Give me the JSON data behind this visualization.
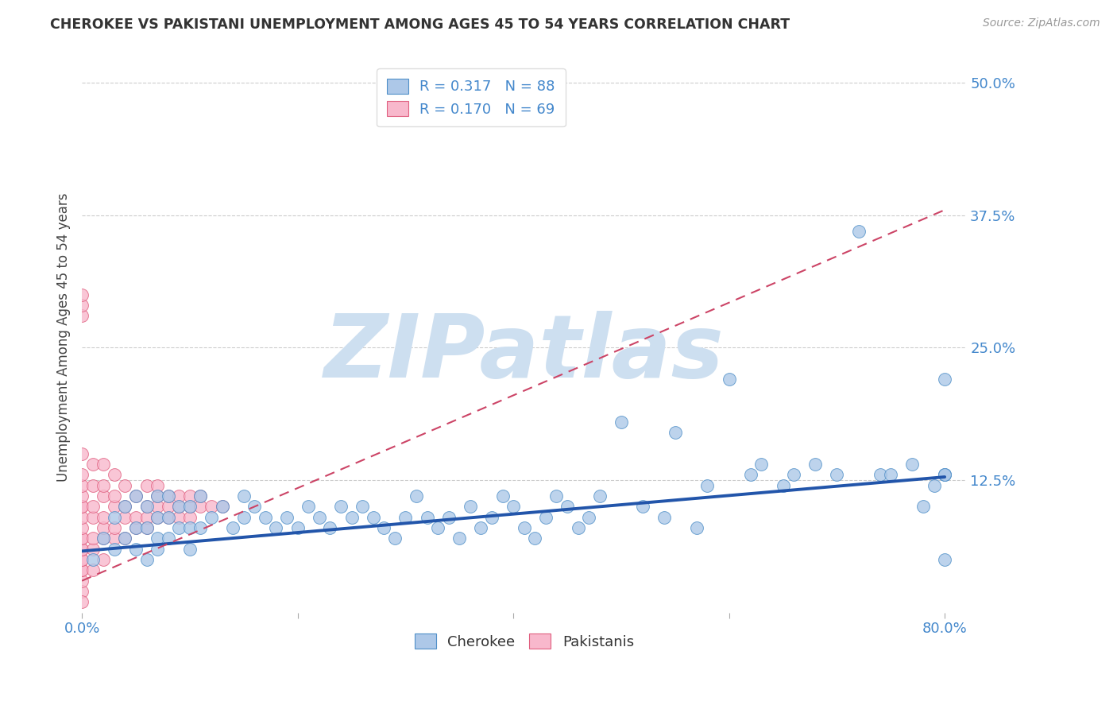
{
  "title": "CHEROKEE VS PAKISTANI UNEMPLOYMENT AMONG AGES 45 TO 54 YEARS CORRELATION CHART",
  "source": "Source: ZipAtlas.com",
  "ylabel": "Unemployment Among Ages 45 to 54 years",
  "xlim": [
    0.0,
    0.82
  ],
  "ylim": [
    0.0,
    0.52
  ],
  "xticks": [
    0.0,
    0.2,
    0.4,
    0.6,
    0.8
  ],
  "xtick_labels": [
    "0.0%",
    "",
    "",
    "",
    "80.0%"
  ],
  "ytick_labels": [
    "12.5%",
    "25.0%",
    "37.5%",
    "50.0%"
  ],
  "yticks": [
    0.125,
    0.25,
    0.375,
    0.5
  ],
  "cherokee_R": 0.317,
  "cherokee_N": 88,
  "pakistani_R": 0.17,
  "pakistani_N": 69,
  "cherokee_color": "#adc8e8",
  "cherokee_edge_color": "#5090c8",
  "cherokee_line_color": "#2255aa",
  "pakistani_color": "#f8b8cc",
  "pakistani_edge_color": "#e06080",
  "pakistani_line_color": "#cc4466",
  "watermark": "ZIPatlas",
  "watermark_color": "#cddff0",
  "background_color": "#ffffff",
  "grid_color": "#cccccc",
  "cherokee_x": [
    0.01,
    0.02,
    0.03,
    0.03,
    0.04,
    0.04,
    0.05,
    0.05,
    0.05,
    0.06,
    0.06,
    0.06,
    0.07,
    0.07,
    0.07,
    0.07,
    0.08,
    0.08,
    0.08,
    0.09,
    0.09,
    0.1,
    0.1,
    0.1,
    0.11,
    0.11,
    0.12,
    0.13,
    0.14,
    0.15,
    0.15,
    0.16,
    0.17,
    0.18,
    0.19,
    0.2,
    0.21,
    0.22,
    0.23,
    0.24,
    0.25,
    0.26,
    0.27,
    0.28,
    0.29,
    0.3,
    0.31,
    0.32,
    0.33,
    0.34,
    0.35,
    0.36,
    0.37,
    0.38,
    0.39,
    0.4,
    0.41,
    0.42,
    0.43,
    0.44,
    0.45,
    0.46,
    0.47,
    0.48,
    0.5,
    0.52,
    0.54,
    0.55,
    0.57,
    0.58,
    0.6,
    0.62,
    0.63,
    0.65,
    0.66,
    0.68,
    0.7,
    0.72,
    0.74,
    0.75,
    0.77,
    0.78,
    0.79,
    0.8,
    0.8,
    0.8,
    0.8,
    0.8
  ],
  "cherokee_y": [
    0.05,
    0.07,
    0.06,
    0.09,
    0.07,
    0.1,
    0.06,
    0.08,
    0.11,
    0.05,
    0.08,
    0.1,
    0.06,
    0.07,
    0.09,
    0.11,
    0.07,
    0.09,
    0.11,
    0.08,
    0.1,
    0.06,
    0.08,
    0.1,
    0.08,
    0.11,
    0.09,
    0.1,
    0.08,
    0.09,
    0.11,
    0.1,
    0.09,
    0.08,
    0.09,
    0.08,
    0.1,
    0.09,
    0.08,
    0.1,
    0.09,
    0.1,
    0.09,
    0.08,
    0.07,
    0.09,
    0.11,
    0.09,
    0.08,
    0.09,
    0.07,
    0.1,
    0.08,
    0.09,
    0.11,
    0.1,
    0.08,
    0.07,
    0.09,
    0.11,
    0.1,
    0.08,
    0.09,
    0.11,
    0.18,
    0.1,
    0.09,
    0.17,
    0.08,
    0.12,
    0.22,
    0.13,
    0.14,
    0.12,
    0.13,
    0.14,
    0.13,
    0.36,
    0.13,
    0.13,
    0.14,
    0.1,
    0.12,
    0.13,
    0.05,
    0.13,
    0.13,
    0.22
  ],
  "pakistani_x": [
    0.0,
    0.0,
    0.0,
    0.0,
    0.0,
    0.0,
    0.0,
    0.0,
    0.0,
    0.0,
    0.0,
    0.0,
    0.0,
    0.0,
    0.0,
    0.0,
    0.0,
    0.0,
    0.0,
    0.0,
    0.0,
    0.0,
    0.01,
    0.01,
    0.01,
    0.01,
    0.01,
    0.01,
    0.01,
    0.02,
    0.02,
    0.02,
    0.02,
    0.02,
    0.02,
    0.02,
    0.03,
    0.03,
    0.03,
    0.03,
    0.03,
    0.04,
    0.04,
    0.04,
    0.04,
    0.05,
    0.05,
    0.05,
    0.06,
    0.06,
    0.06,
    0.06,
    0.07,
    0.07,
    0.07,
    0.07,
    0.08,
    0.08,
    0.08,
    0.09,
    0.09,
    0.09,
    0.1,
    0.1,
    0.1,
    0.11,
    0.11,
    0.12,
    0.13
  ],
  "pakistani_y": [
    0.02,
    0.03,
    0.04,
    0.04,
    0.05,
    0.05,
    0.06,
    0.06,
    0.07,
    0.07,
    0.08,
    0.09,
    0.1,
    0.1,
    0.11,
    0.12,
    0.13,
    0.15,
    0.28,
    0.29,
    0.3,
    0.01,
    0.04,
    0.06,
    0.07,
    0.09,
    0.1,
    0.12,
    0.14,
    0.05,
    0.07,
    0.08,
    0.09,
    0.11,
    0.12,
    0.14,
    0.07,
    0.08,
    0.1,
    0.11,
    0.13,
    0.07,
    0.09,
    0.1,
    0.12,
    0.08,
    0.09,
    0.11,
    0.08,
    0.09,
    0.1,
    0.12,
    0.09,
    0.1,
    0.11,
    0.12,
    0.09,
    0.1,
    0.11,
    0.09,
    0.1,
    0.11,
    0.09,
    0.1,
    0.11,
    0.1,
    0.11,
    0.1,
    0.1
  ],
  "cherokee_line_x0": 0.0,
  "cherokee_line_x1": 0.8,
  "cherokee_line_y0": 0.058,
  "cherokee_line_y1": 0.128,
  "pakistani_line_x0": 0.0,
  "pakistani_line_x1": 0.8,
  "pakistani_line_y0": 0.03,
  "pakistani_line_y1": 0.38
}
